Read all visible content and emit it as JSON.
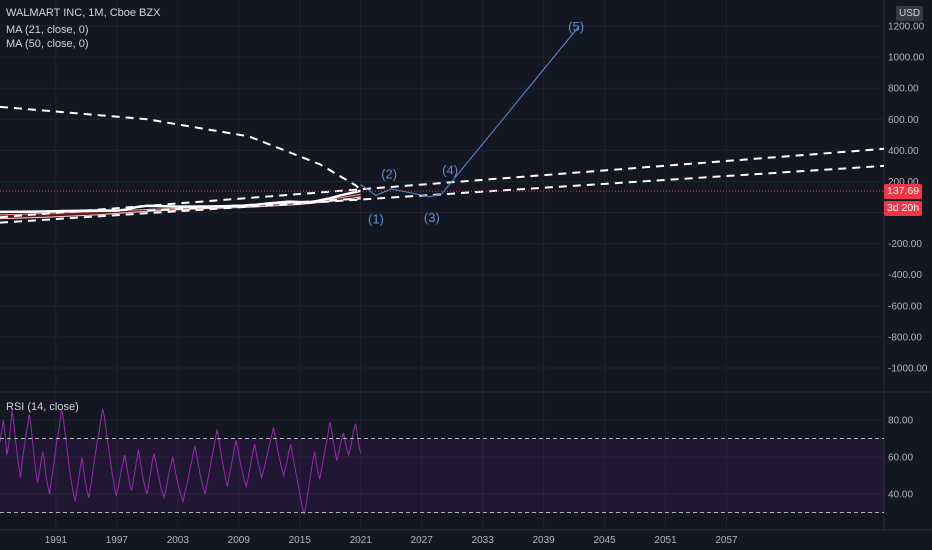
{
  "chart_data": [
    {
      "type": "line",
      "legend": {
        "symbol": "WALMART INC, 1M, Cboe BZX",
        "ma21": "MA (21, close, 0)",
        "ma50": "MA (50, close, 0)"
      },
      "currency": "USD",
      "last_price": "137.69",
      "countdown": "3d 20h",
      "y_ticks": [
        "1200.00",
        "1000.00",
        "800.00",
        "600.00",
        "400.00",
        "200.00",
        "-200.00",
        "-400.00",
        "-600.00",
        "-800.00",
        "-1000.00"
      ],
      "ylim": [
        -1100,
        1250
      ],
      "x_ticks": [
        "1991",
        "1997",
        "2003",
        "2009",
        "2015",
        "2021",
        "2027",
        "2033",
        "2039",
        "2045",
        "2051",
        "2057"
      ],
      "xlim": [
        1985.5,
        2072.5
      ],
      "price_series": {
        "x": [
          1985.5,
          1989,
          1992,
          1995,
          1997,
          1998,
          1999,
          2000,
          2003,
          2006,
          2008,
          2010,
          2012,
          2014,
          2016,
          2018,
          2019,
          2020,
          2021
        ],
        "y": [
          4,
          6,
          10,
          13,
          12,
          20,
          36,
          44,
          38,
          39,
          41,
          45,
          60,
          70,
          65,
          92,
          110,
          125,
          140
        ]
      },
      "ma_band": {
        "x": [
          1985.5,
          1990,
          1995,
          2000,
          2005,
          2010,
          2015,
          2019,
          2021
        ],
        "ma21": [
          -15,
          -5,
          5,
          20,
          30,
          44,
          66,
          95,
          118
        ],
        "ma50": [
          -40,
          -30,
          -15,
          8,
          24,
          34,
          52,
          78,
          102
        ]
      },
      "dashed_lines": [
        {
          "x": [
            1985.5,
            2072.5
          ],
          "y": [
            -30,
            410
          ]
        },
        {
          "x": [
            1985.5,
            2072.5
          ],
          "y": [
            -65,
            300
          ]
        },
        {
          "x": [
            1985.5,
            2000,
            2010,
            2017,
            2020.5,
            2021.2
          ],
          "y": [
            680,
            600,
            490,
            310,
            175,
            135
          ]
        },
        {
          "x": [
            2000,
            2021
          ],
          "y": [
            12,
            90
          ]
        }
      ],
      "wave": {
        "x": [
          2021.0,
          2022.5,
          2024.0,
          2027.8,
          2029.0,
          2042.5
        ],
        "y": [
          180,
          110,
          152,
          102,
          122,
          1200
        ],
        "labels": [
          {
            "text": "(1)",
            "x": 2022.5,
            "y": -72
          },
          {
            "text": "(2)",
            "x": 2023.8,
            "y": 218
          },
          {
            "text": "(3)",
            "x": 2028.0,
            "y": -62
          },
          {
            "text": "(4)",
            "x": 2029.8,
            "y": 246
          },
          {
            "text": "(5)",
            "x": 2042.2,
            "y": 1168
          }
        ]
      },
      "rsi": {
        "label": "RSI (14, close)",
        "y_ticks": [
          "80.00",
          "60.00",
          "40.00"
        ],
        "upper": 70,
        "lower": 30,
        "ylim": [
          25,
          92
        ],
        "values": [
          68,
          74,
          80,
          72,
          61,
          66,
          75,
          85,
          79,
          70,
          62,
          55,
          49,
          58,
          64,
          71,
          76,
          83,
          78,
          69,
          60,
          52,
          46,
          51,
          57,
          63,
          58,
          49,
          44,
          40,
          47,
          53,
          60,
          67,
          72,
          78,
          86,
          81,
          73,
          66,
          58,
          51,
          45,
          40,
          36,
          42,
          48,
          54,
          60,
          52,
          46,
          41,
          38,
          44,
          50,
          57,
          63,
          69,
          74,
          80,
          86,
          82,
          75,
          68,
          62,
          55,
          49,
          44,
          39,
          43,
          48,
          53,
          57,
          61,
          56,
          50,
          45,
          42,
          47,
          53,
          59,
          64,
          58,
          52,
          47,
          43,
          40,
          45,
          51,
          57,
          62,
          58,
          53,
          49,
          44,
          41,
          38,
          42,
          47,
          52,
          56,
          60,
          55,
          50,
          46,
          42,
          39,
          36,
          40,
          44,
          48,
          53,
          57,
          62,
          66,
          61,
          56,
          51,
          47,
          43,
          40,
          45,
          50,
          55,
          60,
          65,
          70,
          75,
          70,
          64,
          58,
          53,
          48,
          44,
          49,
          54,
          59,
          64,
          69,
          65,
          60,
          55,
          51,
          47,
          44,
          48,
          53,
          58,
          63,
          67,
          62,
          57,
          53,
          49,
          52,
          56,
          60,
          64,
          68,
          72,
          76,
          71,
          66,
          61,
          57,
          53,
          50,
          54,
          58,
          63,
          67,
          62,
          57,
          52,
          47,
          42,
          37,
          32,
          29,
          34,
          40,
          46,
          52,
          58,
          63,
          57,
          52,
          48,
          53,
          58,
          63,
          68,
          73,
          79,
          74,
          68,
          63,
          58,
          62,
          66,
          70,
          73,
          68,
          64,
          61,
          65,
          70,
          75,
          78,
          72,
          66,
          62
        ]
      }
    }
  ]
}
